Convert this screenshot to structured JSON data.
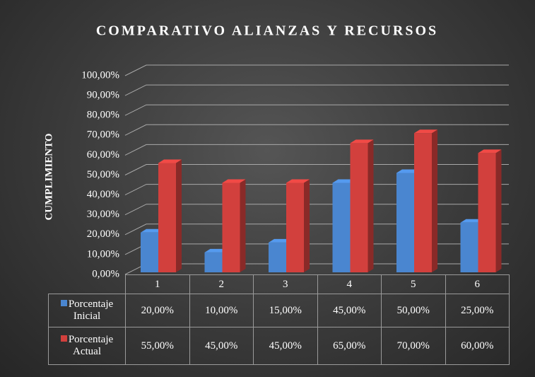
{
  "chart_data": {
    "type": "bar3d",
    "title": "COMPARATIVO ALIANZAS Y RECURSOS",
    "y_axis_label": "CUMPLIMIENTO",
    "categories": [
      "1",
      "2",
      "3",
      "4",
      "5",
      "6"
    ],
    "series": [
      {
        "name": "Porcentaje Inicial",
        "color": "#4a86d0",
        "values": [
          20,
          10,
          15,
          45,
          50,
          25
        ],
        "value_labels": [
          "20,00%",
          "10,00%",
          "15,00%",
          "45,00%",
          "50,00%",
          "25,00%"
        ]
      },
      {
        "name": "Porcentaje Actual",
        "color": "#d2403d",
        "values": [
          55,
          45,
          45,
          65,
          70,
          60
        ],
        "value_labels": [
          "55,00%",
          "45,00%",
          "45,00%",
          "65,00%",
          "70,00%",
          "60,00%"
        ]
      }
    ],
    "ylim": [
      0,
      100
    ],
    "yticks": [
      {
        "value": 0,
        "label": "0,00%"
      },
      {
        "value": 10,
        "label": "10,00%"
      },
      {
        "value": 20,
        "label": "20,00%"
      },
      {
        "value": 30,
        "label": "30,00%"
      },
      {
        "value": 40,
        "label": "40,00%"
      },
      {
        "value": 50,
        "label": "50,00%"
      },
      {
        "value": 60,
        "label": "60,00%"
      },
      {
        "value": 70,
        "label": "70,00%"
      },
      {
        "value": 80,
        "label": "80,00%"
      },
      {
        "value": 90,
        "label": "90,00%"
      },
      {
        "value": 100,
        "label": "100,00%"
      }
    ],
    "grid": true,
    "data_table": true
  }
}
